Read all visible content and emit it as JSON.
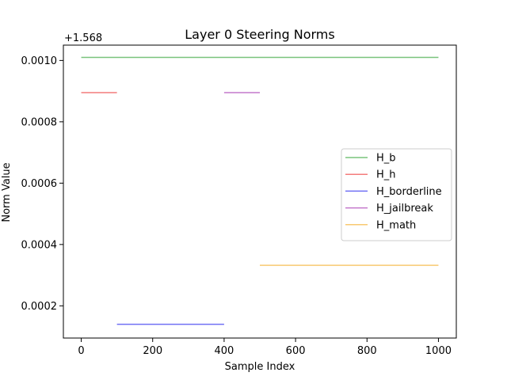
{
  "chart_data": {
    "type": "line",
    "title": "Layer 0 Steering Norms",
    "xlabel": "Sample Index",
    "ylabel": "Norm Value",
    "y_offset_label": "+1.568",
    "y_offset": 1.568,
    "xlim": [
      -50,
      1050
    ],
    "ylim": [
      9.5e-05,
      0.00105
    ],
    "x_ticks": [
      0,
      200,
      400,
      600,
      800,
      1000
    ],
    "x_tick_labels": [
      "0",
      "200",
      "400",
      "600",
      "800",
      "1000"
    ],
    "y_ticks": [
      0.0002,
      0.0004,
      0.0006,
      0.0008,
      0.001
    ],
    "y_tick_labels": [
      "0.0002",
      "0.0004",
      "0.0006",
      "0.0008",
      "0.0010"
    ],
    "grid": false,
    "legend_position": "center-right",
    "series": [
      {
        "name": "H_b",
        "color": "#4caf50",
        "x": [
          0,
          1000
        ],
        "y": [
          0.00101,
          0.00101
        ]
      },
      {
        "name": "H_h",
        "color": "#f05050",
        "x": [
          0,
          100
        ],
        "y": [
          0.000895,
          0.000895
        ]
      },
      {
        "name": "H_borderline",
        "color": "#4040f0",
        "x": [
          100,
          400
        ],
        "y": [
          0.00014,
          0.00014
        ]
      },
      {
        "name": "H_jailbreak",
        "color": "#b04bbb",
        "x": [
          400,
          500
        ],
        "y": [
          0.000895,
          0.000895
        ]
      },
      {
        "name": "H_math",
        "color": "#f6b740",
        "x": [
          500,
          1000
        ],
        "y": [
          0.000332,
          0.000332
        ]
      }
    ]
  }
}
